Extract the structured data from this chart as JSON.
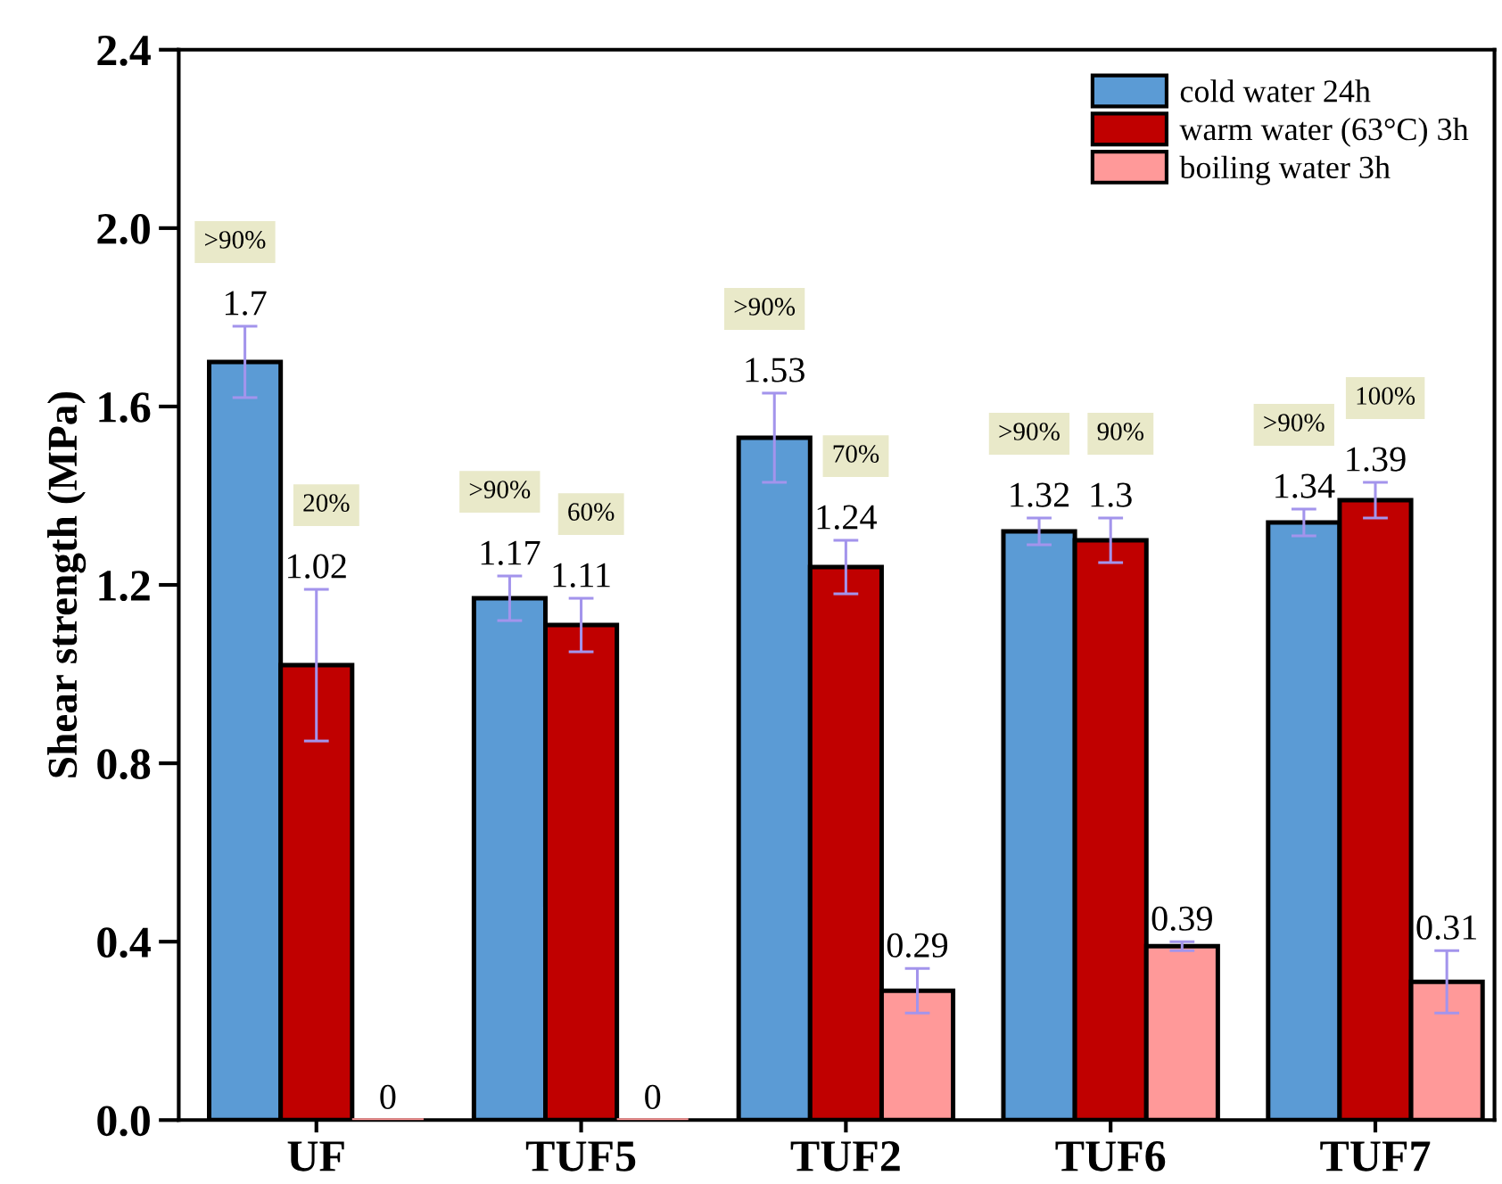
{
  "chart_data": {
    "type": "bar",
    "ylabel": "Shear strength (MPa)",
    "categories": [
      "UF",
      "TUF5",
      "TUF2",
      "TUF6",
      "TUF7"
    ],
    "series": [
      {
        "name": "cold water 24h",
        "color": "#5b9bd5",
        "values": [
          1.7,
          1.17,
          1.53,
          1.32,
          1.34
        ],
        "errors": [
          0.08,
          0.05,
          0.1,
          0.03,
          0.03
        ]
      },
      {
        "name": "warm water (63°C) 3h",
        "color": "#c00000",
        "values": [
          1.02,
          1.11,
          1.24,
          1.3,
          1.39
        ],
        "errors": [
          0.17,
          0.06,
          0.06,
          0.05,
          0.04
        ]
      },
      {
        "name": "boiling water 3h",
        "color": "#ff9999",
        "values": [
          0,
          0,
          0.29,
          0.39,
          0.31
        ],
        "errors": [
          null,
          null,
          0.05,
          0.01,
          0.07
        ]
      }
    ],
    "ylim": [
      0,
      2.4
    ],
    "yticks": [
      {
        "value": 0,
        "label": "0.0"
      },
      0.4,
      0.8,
      1.2,
      1.6,
      {
        "value": 2,
        "label": "2.0"
      },
      2.4
    ],
    "data_labels": true,
    "legend": "top right",
    "grid": false,
    "annotations": [
      ">90%",
      "20%",
      ">90%",
      "60%",
      ">90%",
      "70%",
      ">90%",
      "90%",
      ">90%",
      "100%"
    ]
  }
}
